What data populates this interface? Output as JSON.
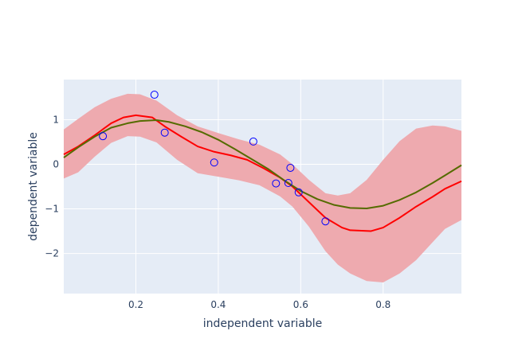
{
  "chart_data": {
    "type": "scatter",
    "title": "",
    "xlabel": "independent variable",
    "ylabel": "dependent variable",
    "xlim": [
      0.025,
      0.99
    ],
    "ylim": [
      -2.9,
      1.9
    ],
    "grid": true,
    "legend": "none",
    "x_ticks": [
      {
        "value": 0.2,
        "label": "0.2"
      },
      {
        "value": 0.4,
        "label": "0.4"
      },
      {
        "value": 0.6,
        "label": "0.6"
      },
      {
        "value": 0.8,
        "label": "0.8"
      }
    ],
    "y_ticks": [
      {
        "value": 1,
        "label": "1"
      },
      {
        "value": 0,
        "label": "0"
      },
      {
        "value": -1,
        "label": "−1"
      },
      {
        "value": -2,
        "label": "−2"
      }
    ],
    "colors": {
      "plot_bg": "#e5ecf6",
      "grid": "#ffffff",
      "band": "#eeaaaf",
      "mean": "#ff0000",
      "true": "#556b00",
      "marker": "#0000ff"
    },
    "band": {
      "x": [
        0.025,
        0.06,
        0.1,
        0.14,
        0.18,
        0.21,
        0.25,
        0.3,
        0.35,
        0.4,
        0.45,
        0.5,
        0.55,
        0.58,
        0.62,
        0.66,
        0.69,
        0.72,
        0.76,
        0.8,
        0.84,
        0.88,
        0.92,
        0.95,
        0.99
      ],
      "upper": [
        0.78,
        1.02,
        1.28,
        1.47,
        1.58,
        1.57,
        1.43,
        1.1,
        0.85,
        0.7,
        0.56,
        0.44,
        0.22,
        0.0,
        -0.35,
        -0.65,
        -0.7,
        -0.65,
        -0.35,
        0.1,
        0.52,
        0.8,
        0.87,
        0.85,
        0.75
      ],
      "lower": [
        -0.32,
        -0.18,
        0.17,
        0.48,
        0.63,
        0.62,
        0.49,
        0.1,
        -0.2,
        -0.28,
        -0.36,
        -0.47,
        -0.72,
        -0.95,
        -1.4,
        -1.95,
        -2.25,
        -2.45,
        -2.62,
        -2.65,
        -2.45,
        -2.15,
        -1.75,
        -1.45,
        -1.25
      ]
    },
    "series": [
      {
        "x": [
          0.025,
          0.06,
          0.1,
          0.14,
          0.17,
          0.2,
          0.24,
          0.27,
          0.31,
          0.35,
          0.39,
          0.43,
          0.47,
          0.51,
          0.55,
          0.58,
          0.62,
          0.66,
          0.7,
          0.72,
          0.77,
          0.8,
          0.84,
          0.88,
          0.92,
          0.95,
          0.99
        ],
        "y": [
          0.22,
          0.4,
          0.65,
          0.92,
          1.05,
          1.1,
          1.05,
          0.85,
          0.62,
          0.4,
          0.28,
          0.2,
          0.1,
          -0.09,
          -0.3,
          -0.5,
          -0.85,
          -1.2,
          -1.42,
          -1.48,
          -1.5,
          -1.42,
          -1.2,
          -0.95,
          -0.73,
          -0.55,
          -0.38
        ]
      },
      {
        "x": [
          0.025,
          0.06,
          0.1,
          0.14,
          0.18,
          0.21,
          0.25,
          0.28,
          0.32,
          0.36,
          0.4,
          0.44,
          0.48,
          0.52,
          0.56,
          0.6,
          0.64,
          0.68,
          0.72,
          0.76,
          0.8,
          0.84,
          0.88,
          0.92,
          0.95,
          0.99
        ],
        "y": [
          0.15,
          0.38,
          0.62,
          0.82,
          0.92,
          0.97,
          0.99,
          0.95,
          0.85,
          0.72,
          0.55,
          0.34,
          0.12,
          -0.1,
          -0.36,
          -0.6,
          -0.78,
          -0.91,
          -0.98,
          -0.99,
          -0.93,
          -0.8,
          -0.63,
          -0.42,
          -0.25,
          -0.02
        ]
      },
      {
        "x": [
          0.12,
          0.245,
          0.27,
          0.39,
          0.485,
          0.54,
          0.57,
          0.575,
          0.595,
          0.66
        ],
        "y": [
          0.63,
          1.56,
          0.71,
          0.04,
          0.51,
          -0.43,
          -0.42,
          -0.08,
          -0.63,
          -1.28
        ]
      }
    ]
  }
}
